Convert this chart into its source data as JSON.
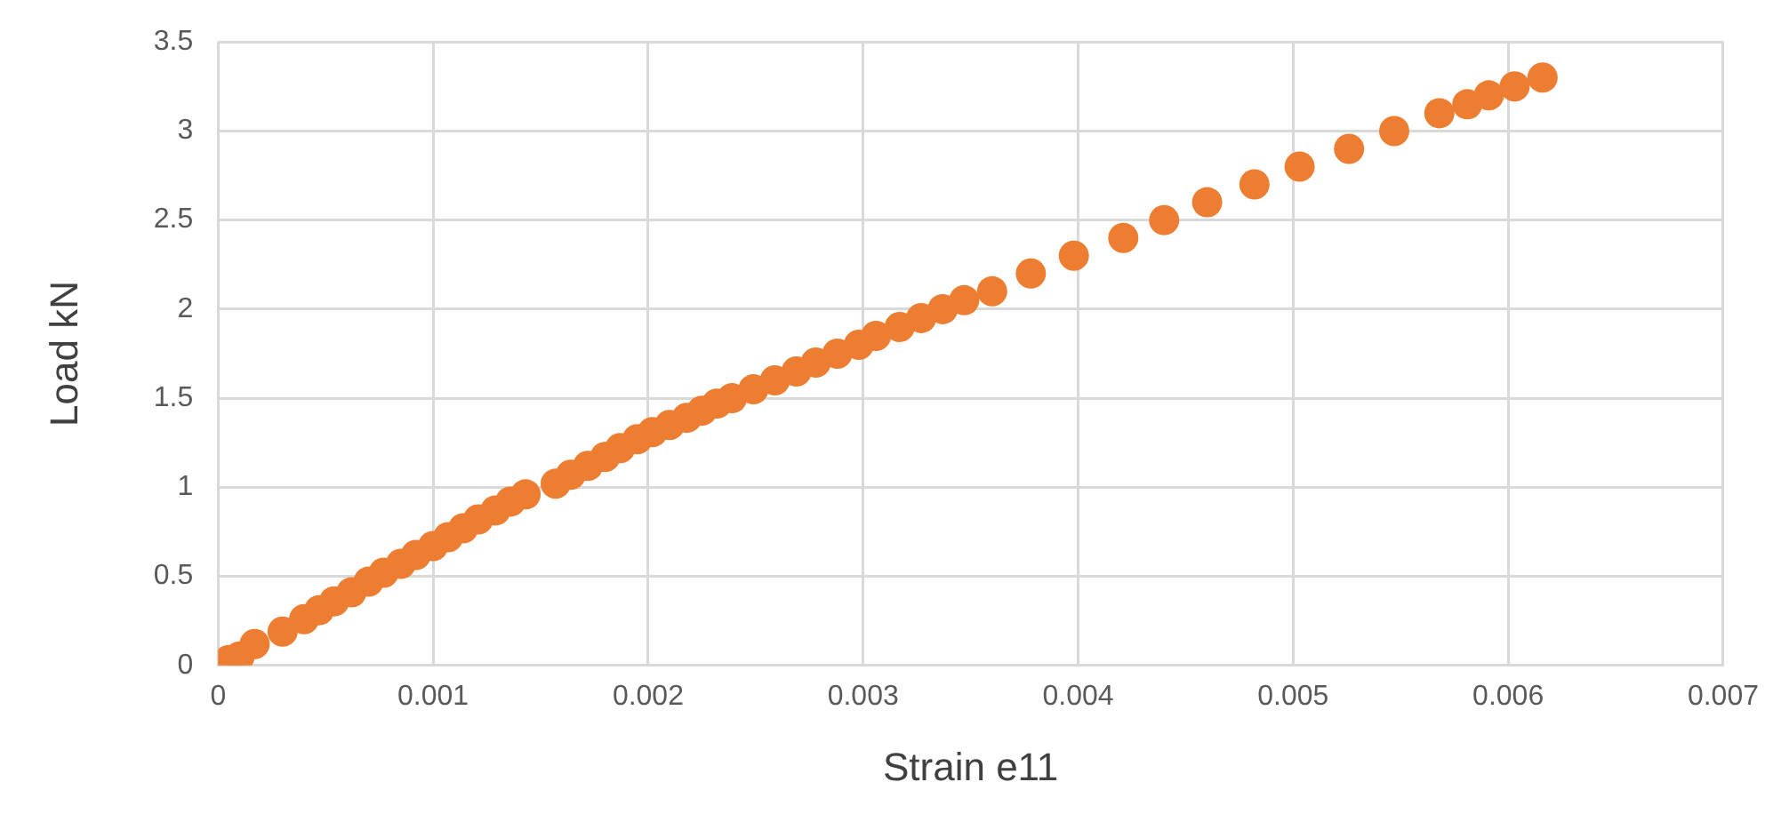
{
  "chart_data": {
    "type": "scatter",
    "xlabel": "Strain e11",
    "ylabel": "Load kN",
    "marker": "circle",
    "grid": true,
    "legend": false,
    "xlim": [
      0,
      0.007
    ],
    "xticks": [
      0,
      0.001,
      0.002,
      0.003,
      0.004,
      0.005,
      0.006,
      0.007
    ],
    "ylim": [
      0,
      3.5
    ],
    "yticks": [
      0,
      0.5,
      1,
      1.5,
      2,
      2.5,
      3,
      3.5
    ],
    "series": [
      {
        "color": "#ed7d31",
        "x": [
          5e-05,
          0.0001,
          0.00017,
          0.0003,
          0.0004,
          0.00047,
          0.00054,
          0.00062,
          0.0007,
          0.00077,
          0.00085,
          0.00092,
          0.001,
          0.00107,
          0.00114,
          0.00121,
          0.00129,
          0.00136,
          0.00143,
          0.00157,
          0.00164,
          0.00172,
          0.0018,
          0.00187,
          0.00195,
          0.00202,
          0.0021,
          0.00218,
          0.00225,
          0.00232,
          0.00239,
          0.00249,
          0.00259,
          0.00269,
          0.00278,
          0.00288,
          0.00298,
          0.00306,
          0.00317,
          0.00327,
          0.00337,
          0.00347,
          0.0036,
          0.00378,
          0.00398,
          0.00421,
          0.0044,
          0.0046,
          0.00482,
          0.00503,
          0.00526,
          0.00547,
          0.00568,
          0.00581,
          0.00591,
          0.00603,
          0.00616
        ],
        "values": [
          0.03,
          0.05,
          0.12,
          0.19,
          0.26,
          0.31,
          0.36,
          0.41,
          0.47,
          0.52,
          0.57,
          0.62,
          0.67,
          0.72,
          0.77,
          0.82,
          0.87,
          0.92,
          0.96,
          1.02,
          1.07,
          1.12,
          1.17,
          1.22,
          1.27,
          1.31,
          1.35,
          1.39,
          1.43,
          1.47,
          1.5,
          1.55,
          1.6,
          1.65,
          1.7,
          1.75,
          1.8,
          1.85,
          1.9,
          1.95,
          2.0,
          2.05,
          2.1,
          2.2,
          2.3,
          2.4,
          2.5,
          2.6,
          2.7,
          2.8,
          2.9,
          3.0,
          3.1,
          3.15,
          3.2,
          3.25,
          3.3
        ]
      }
    ]
  }
}
